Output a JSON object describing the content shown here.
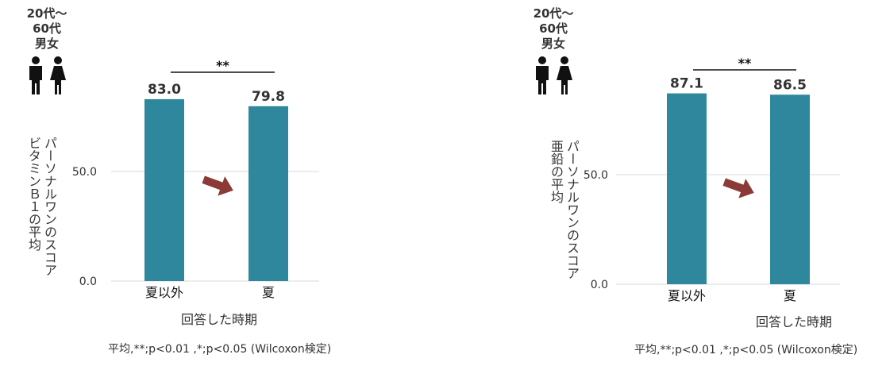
{
  "colors": {
    "bar": "#2E879C",
    "arrow": "#8B3A36",
    "grid": "#D9D9D9",
    "text": "#333333"
  },
  "panels": [
    {
      "demographic": {
        "age": "20代〜60代",
        "gender": "男女",
        "icon": "man-woman-icon"
      },
      "arrow_icon": "right-arrow-icon",
      "significance": "**",
      "footnote": "平均,**;p<0.01 ,*;p<0.05 (Wilcoxon検定)"
    },
    {
      "demographic": {
        "age": "20代〜60代",
        "gender": "男女",
        "icon": "man-woman-icon"
      },
      "arrow_icon": "right-arrow-icon",
      "significance": "**",
      "footnote": "平均,**;p<0.01 ,*;p<0.05 (Wilcoxon検定)"
    }
  ],
  "chart_data": [
    {
      "type": "bar",
      "categories": [
        "夏以外",
        "夏"
      ],
      "values": [
        83.0,
        79.8
      ],
      "value_labels": [
        "83.0",
        "79.8"
      ],
      "ylabel_lines": [
        "パーソナルワンのスコア",
        "ビタミンＢ１の平均"
      ],
      "xlabel": "回答した時期",
      "yticks": [
        0,
        50
      ],
      "ytick_labels": [
        "0.0",
        "50.0"
      ],
      "ylim": [
        0,
        100
      ],
      "grid": true
    },
    {
      "type": "bar",
      "categories": [
        "夏以外",
        "夏"
      ],
      "values": [
        87.1,
        86.5
      ],
      "value_labels": [
        "87.1",
        "86.5"
      ],
      "ylabel_lines": [
        "パーソナルワンのスコア",
        "亜鉛の平均"
      ],
      "xlabel": "回答した時期",
      "yticks": [
        0,
        50
      ],
      "ytick_labels": [
        "0.0",
        "50.0"
      ],
      "ylim": [
        0,
        100
      ],
      "grid": true
    }
  ]
}
